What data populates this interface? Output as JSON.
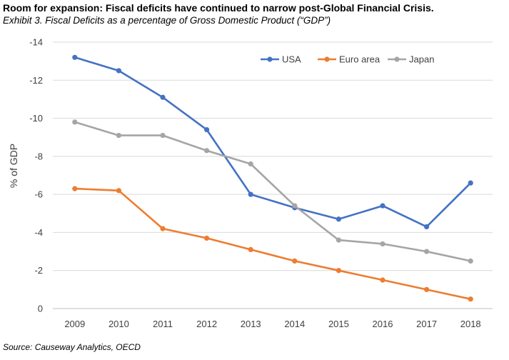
{
  "header": {
    "title": "Room for expansion: Fiscal deficits have continued to narrow post-Global Financial Crisis.",
    "subtitle": "Exhibit 3. Fiscal Deficits as a percentage of Gross Domestic Product (“GDP”)"
  },
  "footer": {
    "source": "Source: Causeway Analytics, OECD"
  },
  "chart_data": {
    "type": "line",
    "categories": [
      "2009",
      "2010",
      "2011",
      "2012",
      "2013",
      "2014",
      "2015",
      "2016",
      "2017",
      "2018"
    ],
    "series": [
      {
        "name": "USA",
        "color": "#4472C4",
        "values": [
          -13.2,
          -12.5,
          -11.1,
          -9.4,
          -6.0,
          -5.3,
          -4.7,
          -5.4,
          -4.3,
          -6.6
        ]
      },
      {
        "name": "Euro area",
        "color": "#ED7D31",
        "values": [
          -6.3,
          -6.2,
          -4.2,
          -3.7,
          -3.1,
          -2.5,
          -2.0,
          -1.5,
          -1.0,
          -0.5
        ]
      },
      {
        "name": "Japan",
        "color": "#A5A5A5",
        "values": [
          -9.8,
          -9.1,
          -9.1,
          -8.3,
          -7.6,
          -5.4,
          -3.6,
          -3.4,
          -3.0,
          -2.5
        ]
      }
    ],
    "ylabel": "% of GDP",
    "xlabel": "",
    "ylim": [
      -14,
      0
    ],
    "y_axis_inverted": true,
    "yticks": [
      -14,
      -12,
      -10,
      -8,
      -6,
      -4,
      -2,
      0
    ],
    "ytick_labels": [
      "-14",
      "-12",
      "-10",
      "-8",
      "-6",
      "-4",
      "-2",
      "0"
    ],
    "grid": true,
    "legend_position": "top-right"
  }
}
